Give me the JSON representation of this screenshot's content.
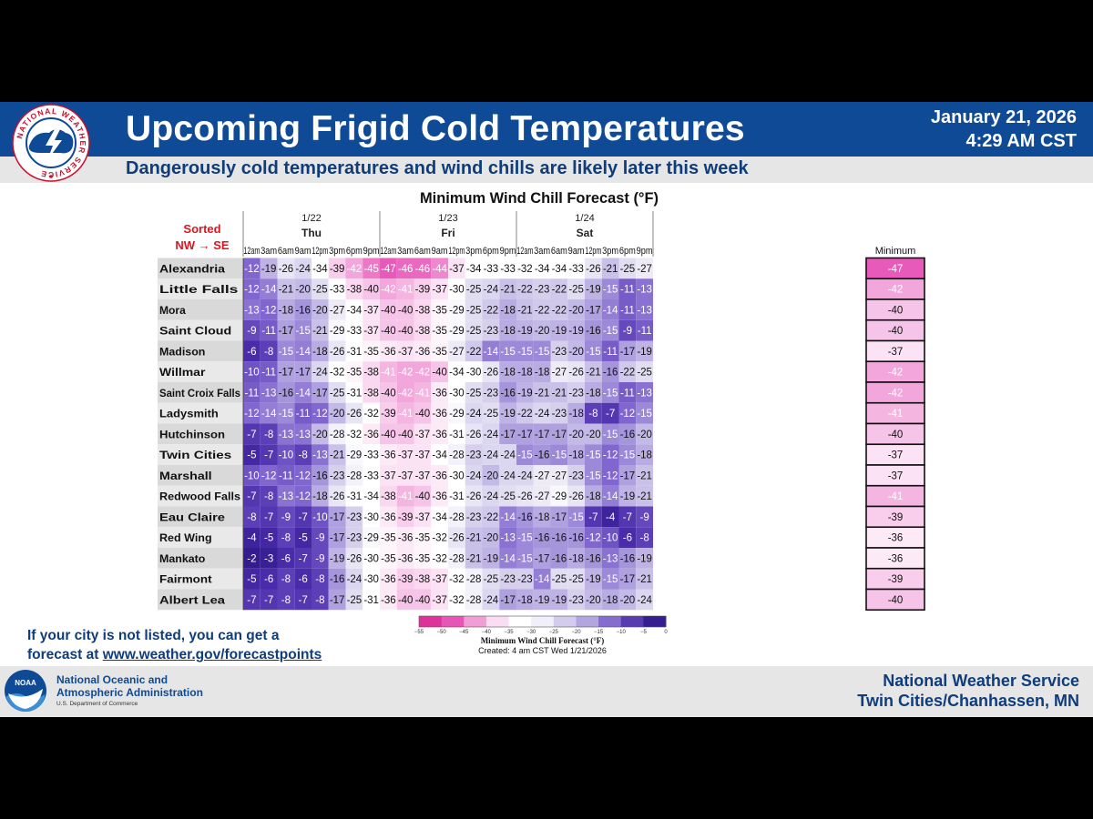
{
  "header": {
    "title": "Upcoming Frigid Cold Temperatures",
    "subtitle": "Dangerously cold temperatures and wind chills are likely later this week",
    "date": "January 21, 2026",
    "time": "4:29 AM CST"
  },
  "logos": {
    "nws_ring_text": "NATIONAL WEATHER SERVICE",
    "noaa_badge_text": "NOAA"
  },
  "footer": {
    "note_line1": "If your city is not listed, you can get a",
    "note_prefix": "forecast at ",
    "note_link": "www.weather.gov/forecastpoints",
    "noaa_line1": "National Oceanic and",
    "noaa_line2": "Atmospheric Administration",
    "noaa_dept": "U.S. Department of Commerce",
    "office_line1": "National Weather Service",
    "office_line2": "Twin Cities/Chanhassen, MN"
  },
  "colors": {
    "header_blue": "#0f4a96",
    "subtitle_navy": "#0f3d7c",
    "coldest_magenta": "#e0389a",
    "warmest_indigo": "#2a1a8c"
  },
  "chart_data": {
    "type": "table",
    "title": "Minimum Wind Chill Forecast (°F)",
    "sort_note_line1": "Sorted",
    "sort_note_line2": "NW → SE",
    "minimum_header": "Minimum",
    "days": [
      {
        "date": "1/22",
        "day": "Thu"
      },
      {
        "date": "1/23",
        "day": "Fri"
      },
      {
        "date": "1/24",
        "day": "Sat"
      }
    ],
    "times": [
      "12am",
      "3am",
      "6am",
      "9am",
      "12pm",
      "3pm",
      "6pm",
      "9pm"
    ],
    "rows": [
      {
        "city": "Alexandria",
        "values": [
          -12,
          -19,
          -26,
          -24,
          -34,
          -39,
          -42,
          -45,
          -47,
          -46,
          -46,
          -44,
          -37,
          -34,
          -33,
          -33,
          -32,
          -34,
          -34,
          -33,
          -26,
          -21,
          -25,
          -27
        ],
        "minimum": -47
      },
      {
        "city": "Little Falls",
        "values": [
          -12,
          -14,
          -21,
          -20,
          -25,
          -33,
          -38,
          -40,
          -42,
          -41,
          -39,
          -37,
          -30,
          -25,
          -24,
          -21,
          -22,
          -23,
          -22,
          -25,
          -19,
          -15,
          -11,
          -13
        ],
        "minimum": -42
      },
      {
        "city": "Mora",
        "values": [
          -13,
          -12,
          -18,
          -16,
          -20,
          -27,
          -34,
          -37,
          -40,
          -40,
          -38,
          -35,
          -29,
          -25,
          -22,
          -18,
          -21,
          -22,
          -22,
          -20,
          -17,
          -14,
          -11,
          -13
        ],
        "minimum": -40
      },
      {
        "city": "Saint Cloud",
        "values": [
          -9,
          -11,
          -17,
          -15,
          -21,
          -29,
          -33,
          -37,
          -40,
          -40,
          -38,
          -35,
          -29,
          -25,
          -23,
          -18,
          -19,
          -20,
          -19,
          -19,
          -16,
          -15,
          -9,
          -11
        ],
        "minimum": -40
      },
      {
        "city": "Madison",
        "values": [
          -6,
          -8,
          -15,
          -14,
          -18,
          -26,
          -31,
          -35,
          -36,
          -37,
          -36,
          -35,
          -27,
          -22,
          -14,
          -15,
          -15,
          -15,
          -23,
          -20,
          -15,
          -11,
          -17,
          -19
        ],
        "minimum": -37
      },
      {
        "city": "Willmar",
        "values": [
          -10,
          -11,
          -17,
          -17,
          -24,
          -32,
          -35,
          -38,
          -41,
          -42,
          -42,
          -40,
          -34,
          -30,
          -26,
          -18,
          -18,
          -18,
          -27,
          -26,
          -21,
          -16,
          -22,
          -25
        ],
        "minimum": -42
      },
      {
        "city": "Saint Croix Falls",
        "values": [
          -11,
          -13,
          -16,
          -14,
          -17,
          -25,
          -31,
          -38,
          -40,
          -42,
          -41,
          -36,
          -30,
          -25,
          -23,
          -16,
          -19,
          -21,
          -21,
          -23,
          -18,
          -15,
          -11,
          -13
        ],
        "minimum": -42
      },
      {
        "city": "Ladysmith",
        "values": [
          -12,
          -14,
          -15,
          -11,
          -12,
          -20,
          -26,
          -32,
          -39,
          -41,
          -40,
          -36,
          -29,
          -24,
          -25,
          -19,
          -22,
          -24,
          -23,
          -18,
          -8,
          -7,
          -12,
          -15
        ],
        "minimum": -41
      },
      {
        "city": "Hutchinson",
        "values": [
          -7,
          -8,
          -13,
          -13,
          -20,
          -28,
          -32,
          -36,
          -40,
          -40,
          -37,
          -36,
          -31,
          -26,
          -24,
          -17,
          -17,
          -17,
          -17,
          -20,
          -20,
          -15,
          -16,
          -20
        ],
        "minimum": -40
      },
      {
        "city": "Twin Cities",
        "values": [
          -5,
          -7,
          -10,
          -8,
          -13,
          -21,
          -29,
          -33,
          -36,
          -37,
          -37,
          -34,
          -28,
          -23,
          -24,
          -24,
          -15,
          -16,
          -15,
          -18,
          -15,
          -12,
          -15,
          -18
        ],
        "minimum": -37
      },
      {
        "city": "Marshall",
        "values": [
          -10,
          -12,
          -11,
          -12,
          -16,
          -23,
          -28,
          -33,
          -37,
          -37,
          -37,
          -36,
          -30,
          -24,
          -20,
          -24,
          -24,
          -27,
          -27,
          -23,
          -15,
          -12,
          -17,
          -21
        ],
        "minimum": -37
      },
      {
        "city": "Redwood Falls",
        "values": [
          -7,
          -8,
          -13,
          -12,
          -18,
          -26,
          -31,
          -34,
          -38,
          -41,
          -40,
          -36,
          -31,
          -26,
          -24,
          -25,
          -26,
          -27,
          -29,
          -26,
          -18,
          -14,
          -19,
          -21
        ],
        "minimum": -41
      },
      {
        "city": "Eau Claire",
        "values": [
          -8,
          -7,
          -9,
          -7,
          -10,
          -17,
          -23,
          -30,
          -36,
          -39,
          -37,
          -34,
          -28,
          -23,
          -22,
          -14,
          -16,
          -18,
          -17,
          -15,
          -7,
          -4,
          -7,
          -9
        ],
        "minimum": -39
      },
      {
        "city": "Red Wing",
        "values": [
          -4,
          -5,
          -8,
          -5,
          -9,
          -17,
          -23,
          -29,
          -35,
          -36,
          -35,
          -32,
          -26,
          -21,
          -20,
          -13,
          -15,
          -16,
          -16,
          -16,
          -12,
          -10,
          -6,
          -8
        ],
        "minimum": -36
      },
      {
        "city": "Mankato",
        "values": [
          -2,
          -3,
          -6,
          -7,
          -9,
          -19,
          -26,
          -30,
          -35,
          -36,
          -35,
          -32,
          -28,
          -21,
          -19,
          -14,
          -15,
          -17,
          -16,
          -18,
          -16,
          -13,
          -16,
          -19
        ],
        "minimum": -36
      },
      {
        "city": "Fairmont",
        "values": [
          -5,
          -6,
          -8,
          -6,
          -8,
          -16,
          -24,
          -30,
          -36,
          -39,
          -38,
          -37,
          -32,
          -28,
          -25,
          -23,
          -23,
          -14,
          -25,
          -25,
          -19,
          -15,
          -17,
          -21
        ],
        "minimum": -39
      },
      {
        "city": "Albert Lea",
        "values": [
          -7,
          -7,
          -8,
          -7,
          -8,
          -17,
          -25,
          -31,
          -36,
          -40,
          -40,
          -37,
          -32,
          -28,
          -24,
          -17,
          -18,
          -19,
          -19,
          -23,
          -20,
          -18,
          -20,
          -24
        ],
        "minimum": -40
      }
    ],
    "legend": {
      "ticks": [
        -55,
        -50,
        -45,
        -40,
        -35,
        -30,
        -25,
        -20,
        -15,
        -10,
        -5,
        0
      ],
      "tick_labels": [
        "−55",
        "−50",
        "−45",
        "−40",
        "−35",
        "−30",
        "−25",
        "−20",
        "−15",
        "−10",
        "−5",
        "0"
      ],
      "title": "Minimum Wind Chill Forecast (°F)",
      "created": "Created: 4 am CST Wed 1/21/2026"
    }
  }
}
